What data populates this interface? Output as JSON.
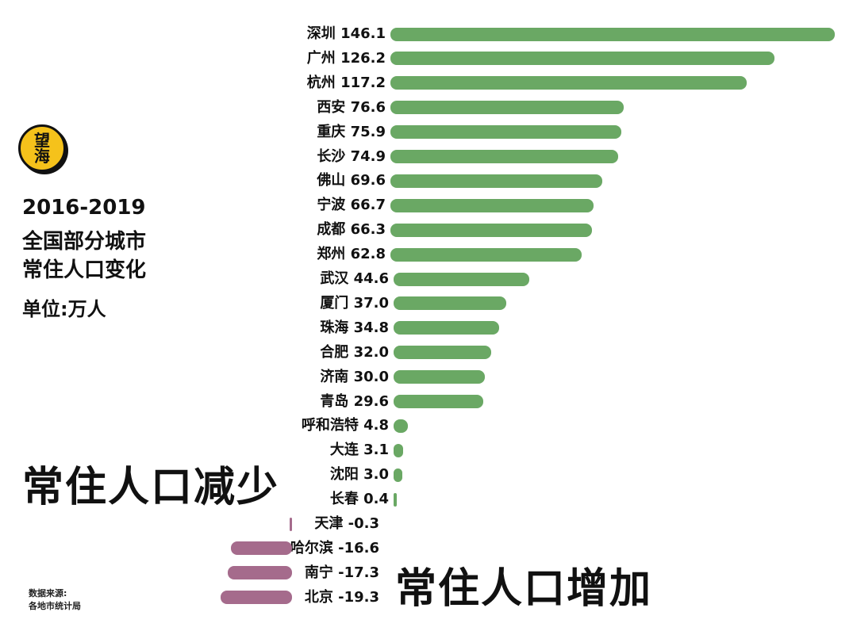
{
  "logo": {
    "line1": "望",
    "line2": "海"
  },
  "title": {
    "line1": "2016-2019",
    "line2": "全国部分城市",
    "line3": "常住人口变化"
  },
  "unit": "单位:万人",
  "annotations": {
    "decrease": "常住人口减少",
    "increase": "常住人口增加"
  },
  "source": {
    "line1": "数据来源:",
    "line2": "各地市统计局"
  },
  "colors": {
    "positive": "#6aa864",
    "negative": "#a56b8c",
    "logo": "#f5c21b"
  },
  "chart_data": {
    "type": "bar",
    "orientation": "horizontal",
    "categories": [
      "深圳",
      "广州",
      "杭州",
      "西安",
      "重庆",
      "长沙",
      "佛山",
      "宁波",
      "成都",
      "郑州",
      "武汉",
      "厦门",
      "珠海",
      "合肥",
      "济南",
      "青岛",
      "呼和浩特",
      "大连",
      "沈阳",
      "长春",
      "天津",
      "哈尔滨",
      "南宁",
      "北京"
    ],
    "values": [
      146.1,
      126.2,
      117.2,
      76.6,
      75.9,
      74.9,
      69.6,
      66.7,
      66.3,
      62.8,
      44.6,
      37.0,
      34.8,
      32.0,
      30.0,
      29.6,
      4.8,
      3.1,
      3.0,
      0.4,
      -0.3,
      -16.6,
      -17.3,
      -19.3
    ],
    "value_labels": [
      "146.1",
      "126.2",
      "117.2",
      "76.6",
      "75.9",
      "74.9",
      "69.6",
      "66.7",
      "66.3",
      "62.8",
      "44.6",
      "37.0",
      "34.8",
      "32.0",
      "30.0",
      "29.6",
      "4.8",
      "3.1",
      "3.0",
      "0.4",
      "-0.3",
      "-16.6",
      "-17.3",
      "-19.3"
    ],
    "title": "",
    "xlabel": "",
    "ylabel": ""
  }
}
